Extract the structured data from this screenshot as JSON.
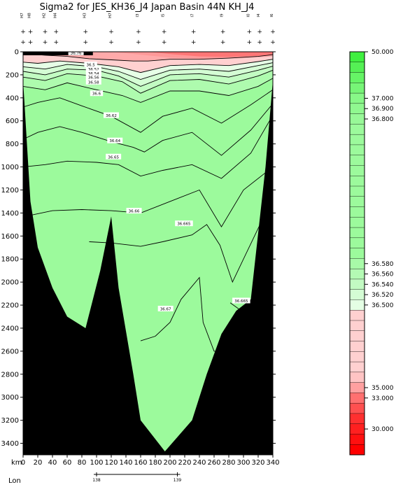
{
  "chart_data": {
    "type": "contour-section",
    "title": "Sigma2 for JES_KH36_J4 Japan Basin 44N KH_J4",
    "x_axis": {
      "label": "km",
      "range": [
        0,
        340
      ],
      "ticks": [
        0,
        20,
        40,
        60,
        80,
        100,
        120,
        140,
        160,
        180,
        200,
        220,
        240,
        260,
        280,
        300,
        320,
        340
      ]
    },
    "y_axis": {
      "range": [
        0,
        3500
      ],
      "inverted": true,
      "ticks": [
        0,
        200,
        400,
        600,
        800,
        1000,
        1200,
        1400,
        1600,
        1800,
        2000,
        2200,
        2400,
        2600,
        2800,
        3000,
        3200,
        3400
      ]
    },
    "lon_axis": {
      "label": "Lon",
      "ticks": [
        {
          "km": 100,
          "label": "138"
        },
        {
          "km": 210,
          "label": "139"
        }
      ]
    },
    "stations": [
      {
        "km": 0,
        "label": "H7"
      },
      {
        "km": 10,
        "label": "H8"
      },
      {
        "km": 30,
        "label": "H2"
      },
      {
        "km": 45,
        "label": "H4"
      },
      {
        "km": 85,
        "label": "H3"
      },
      {
        "km": 120,
        "label": "H7"
      },
      {
        "km": 157,
        "label": "I3"
      },
      {
        "km": 192,
        "label": "I5"
      },
      {
        "km": 232,
        "label": "I7"
      },
      {
        "km": 272,
        "label": "I9"
      },
      {
        "km": 308,
        "label": "I0"
      },
      {
        "km": 322,
        "label": "I4"
      },
      {
        "km": 340,
        "label": "I6"
      }
    ],
    "bottom_depth": [
      [
        0,
        250
      ],
      [
        10,
        1300
      ],
      [
        20,
        1700
      ],
      [
        40,
        2050
      ],
      [
        60,
        2300
      ],
      [
        85,
        2400
      ],
      [
        105,
        1900
      ],
      [
        120,
        1430
      ],
      [
        130,
        2050
      ],
      [
        150,
        2800
      ],
      [
        160,
        3200
      ],
      [
        193,
        3470
      ],
      [
        230,
        3200
      ],
      [
        250,
        2800
      ],
      [
        270,
        2450
      ],
      [
        290,
        2250
      ],
      [
        310,
        2150
      ],
      [
        330,
        1000
      ],
      [
        340,
        250
      ]
    ],
    "contours": [
      {
        "level": "36.5",
        "label": "36.5",
        "points": [
          [
            10,
            20
          ],
          [
            30,
            30
          ],
          [
            60,
            40
          ],
          [
            90,
            60
          ],
          [
            120,
            70
          ],
          [
            150,
            80
          ],
          [
            170,
            80
          ],
          [
            200,
            65
          ],
          [
            240,
            65
          ],
          [
            280,
            55
          ],
          [
            320,
            40
          ],
          [
            340,
            25
          ]
        ]
      },
      {
        "level": "36.52",
        "label": "36.52",
        "points": [
          [
            0,
            90
          ],
          [
            20,
            100
          ],
          [
            50,
            80
          ],
          [
            90,
            100
          ],
          [
            130,
            130
          ],
          [
            160,
            180
          ],
          [
            200,
            120
          ],
          [
            240,
            110
          ],
          [
            280,
            120
          ],
          [
            320,
            85
          ],
          [
            340,
            65
          ]
        ]
      },
      {
        "level": "36.54",
        "label": "36.54",
        "points": [
          [
            0,
            130
          ],
          [
            30,
            150
          ],
          [
            60,
            110
          ],
          [
            100,
            130
          ],
          [
            130,
            170
          ],
          [
            160,
            240
          ],
          [
            200,
            160
          ],
          [
            240,
            150
          ],
          [
            280,
            170
          ],
          [
            320,
            120
          ],
          [
            340,
            95
          ]
        ]
      },
      {
        "level": "36.56",
        "label": "36.56",
        "points": [
          [
            0,
            170
          ],
          [
            30,
            200
          ],
          [
            60,
            150
          ],
          [
            100,
            160
          ],
          [
            130,
            210
          ],
          [
            160,
            300
          ],
          [
            200,
            200
          ],
          [
            240,
            190
          ],
          [
            280,
            220
          ],
          [
            320,
            160
          ],
          [
            340,
            125
          ]
        ]
      },
      {
        "level": "36.58",
        "label": "36.58",
        "points": [
          [
            0,
            220
          ],
          [
            30,
            250
          ],
          [
            60,
            190
          ],
          [
            100,
            210
          ],
          [
            135,
            260
          ],
          [
            160,
            360
          ],
          [
            200,
            250
          ],
          [
            240,
            240
          ],
          [
            280,
            280
          ],
          [
            320,
            210
          ],
          [
            340,
            160
          ]
        ]
      },
      {
        "level": "36.6",
        "label": "36.6",
        "points": [
          [
            0,
            300
          ],
          [
            30,
            330
          ],
          [
            60,
            270
          ],
          [
            100,
            330
          ],
          [
            135,
            380
          ],
          [
            160,
            440
          ],
          [
            200,
            340
          ],
          [
            240,
            340
          ],
          [
            280,
            380
          ],
          [
            320,
            300
          ],
          [
            340,
            230
          ]
        ]
      },
      {
        "level": "36.62",
        "label": "36.62",
        "points": [
          [
            0,
            480
          ],
          [
            20,
            440
          ],
          [
            50,
            400
          ],
          [
            80,
            470
          ],
          [
            120,
            560
          ],
          [
            160,
            700
          ],
          [
            190,
            560
          ],
          [
            230,
            490
          ],
          [
            270,
            620
          ],
          [
            310,
            460
          ],
          [
            340,
            330
          ]
        ]
      },
      {
        "level": "36.64",
        "label": "36.64",
        "points": [
          [
            0,
            760
          ],
          [
            20,
            700
          ],
          [
            50,
            650
          ],
          [
            80,
            700
          ],
          [
            120,
            780
          ],
          [
            150,
            830
          ],
          [
            165,
            870
          ],
          [
            190,
            770
          ],
          [
            230,
            700
          ],
          [
            270,
            900
          ],
          [
            310,
            680
          ],
          [
            340,
            450
          ]
        ]
      },
      {
        "level": "36.65",
        "label": "36.65",
        "points": [
          [
            0,
            1000
          ],
          [
            30,
            980
          ],
          [
            60,
            950
          ],
          [
            100,
            960
          ],
          [
            130,
            980
          ],
          [
            160,
            1080
          ],
          [
            190,
            1030
          ],
          [
            230,
            980
          ],
          [
            270,
            1100
          ],
          [
            310,
            880
          ],
          [
            340,
            550
          ]
        ]
      },
      {
        "level": "36.66",
        "label": "36.66",
        "points": [
          [
            10,
            1420
          ],
          [
            40,
            1380
          ],
          [
            80,
            1370
          ],
          [
            120,
            1380
          ],
          [
            160,
            1400
          ],
          [
            200,
            1300
          ],
          [
            240,
            1200
          ],
          [
            270,
            1520
          ],
          [
            300,
            1200
          ],
          [
            330,
            1050
          ]
        ]
      },
      {
        "level": "36.665",
        "label": "36.665",
        "points": [
          [
            90,
            1650
          ],
          [
            120,
            1660
          ],
          [
            160,
            1690
          ],
          [
            190,
            1650
          ],
          [
            230,
            1590
          ],
          [
            250,
            1500
          ],
          [
            268,
            1680
          ],
          [
            285,
            2000
          ],
          [
            300,
            1800
          ],
          [
            330,
            1400
          ]
        ]
      },
      {
        "level": "36.665b",
        "label": "36.665",
        "points": [
          [
            282,
            2180
          ],
          [
            295,
            2240
          ],
          [
            315,
            2210
          ],
          [
            318,
            2180
          ]
        ]
      },
      {
        "level": "36.67",
        "label": "36.67",
        "points": [
          [
            160,
            2510
          ],
          [
            180,
            2470
          ],
          [
            200,
            2350
          ],
          [
            215,
            2150
          ],
          [
            240,
            1960
          ],
          [
            245,
            2350
          ],
          [
            260,
            2600
          ],
          [
            280,
            2600
          ],
          [
            300,
            2400
          ],
          [
            310,
            2300
          ]
        ]
      }
    ],
    "contour_labels": [
      {
        "text": "36.5",
        "km": 92,
        "depth": 110
      },
      {
        "text": "36.52",
        "km": 96,
        "depth": 150
      },
      {
        "text": "36.54",
        "km": 96,
        "depth": 185
      },
      {
        "text": "36.56",
        "km": 96,
        "depth": 220
      },
      {
        "text": "36.58",
        "km": 96,
        "depth": 260
      },
      {
        "text": "36.6",
        "km": 100,
        "depth": 360
      },
      {
        "text": "36.62",
        "km": 120,
        "depth": 550
      },
      {
        "text": "36.64",
        "km": 125,
        "depth": 770
      },
      {
        "text": "36.65",
        "km": 123,
        "depth": 910
      },
      {
        "text": "36.66",
        "km": 151,
        "depth": 1380
      },
      {
        "text": "36.665",
        "km": 219,
        "depth": 1490
      },
      {
        "text": "36.665",
        "km": 297,
        "depth": 2160
      },
      {
        "text": "36.67",
        "km": 194,
        "depth": 2230
      },
      {
        "text": "36.76",
        "km": 72,
        "depth": 5
      }
    ],
    "colorbar": {
      "top_label": "50.000",
      "bottom_label": "30.000",
      "labels": [
        {
          "text": "37.000",
          "index": 4
        },
        {
          "text": "36.900",
          "index": 5
        },
        {
          "text": "36.800",
          "index": 6
        },
        {
          "text": "36.580",
          "index": 20
        },
        {
          "text": "36.560",
          "index": 21
        },
        {
          "text": "36.540",
          "index": 22
        },
        {
          "text": "36.520",
          "index": 23
        },
        {
          "text": "36.500",
          "index": 24
        },
        {
          "text": "35.000",
          "index": 32
        },
        {
          "text": "33.000",
          "index": 33
        },
        {
          "text": "30.000",
          "index": 36
        }
      ],
      "colors": [
        "#40f040",
        "#55f055",
        "#66f466",
        "#77f577",
        "#88f888",
        "#90f890",
        "#98f898",
        "#9cfa9c",
        "#9cfa9c",
        "#9cfa9c",
        "#9cfa9c",
        "#9cfa9c",
        "#9cfa9c",
        "#9cfa9c",
        "#9cfa9c",
        "#9cfa9c",
        "#9cfa9c",
        "#9cfa9c",
        "#9cfa9c",
        "#9cfa9c",
        "#a8faa8",
        "#b4fab4",
        "#c2fac2",
        "#d4fcd4",
        "#e4fee4",
        "#ffd0d0",
        "#ffd0d0",
        "#ffd0d0",
        "#ffd0d0",
        "#ffd0d0",
        "#ffd0d0",
        "#ffc4c4",
        "#ffa0a0",
        "#ff7070",
        "#ff5050",
        "#ff3030",
        "#ff2020",
        "#ff1010",
        "#ff0000"
      ],
      "band_index_order": "top_to_bottom"
    },
    "fill_colors": {
      "deep": "#9cfa9c",
      "mid1": "#aefbae",
      "mid2": "#c2fcc2",
      "mid3": "#d4fdd4",
      "pinklight": "#ffd0d0",
      "pink": "#ffaaaa",
      "red": "#ff6060",
      "bottom": "#000000"
    }
  }
}
